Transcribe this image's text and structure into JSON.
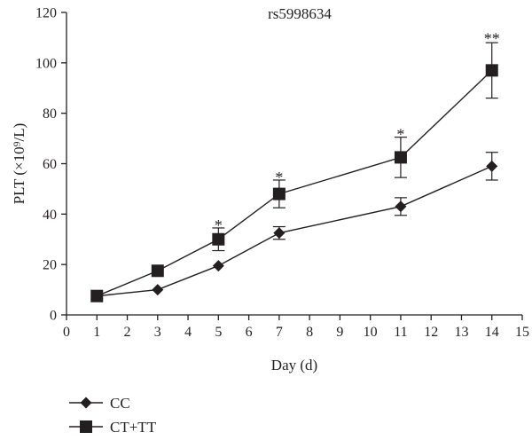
{
  "chart_data": {
    "type": "line",
    "title": "rs5998634",
    "xlabel": "Day (d)",
    "ylabel": "PLT (×10⁹/L)",
    "xlim": [
      0,
      15
    ],
    "ylim": [
      0,
      120
    ],
    "xticks": [
      0,
      1,
      2,
      3,
      4,
      5,
      6,
      7,
      8,
      9,
      10,
      11,
      12,
      13,
      14,
      15
    ],
    "yticks": [
      0,
      20,
      40,
      60,
      80,
      100,
      120
    ],
    "grid": false,
    "legend_position": "bottom-left",
    "series": [
      {
        "name": "CC",
        "marker": "diamond",
        "color": "#231f20",
        "x": [
          1,
          3,
          5,
          7,
          11,
          14
        ],
        "y": [
          7.5,
          10,
          19.5,
          32.5,
          43,
          59
        ],
        "err": [
          0,
          0,
          0,
          2.5,
          3.5,
          5.5
        ]
      },
      {
        "name": "CT+TT",
        "marker": "square",
        "color": "#231f20",
        "x": [
          1,
          3,
          5,
          7,
          11,
          14
        ],
        "y": [
          7.5,
          17.5,
          30,
          48,
          62.5,
          97
        ],
        "err": [
          0,
          0,
          4.5,
          5.5,
          8,
          11
        ]
      }
    ],
    "annotations": [
      {
        "x": 5,
        "y": 37,
        "text": "*"
      },
      {
        "x": 7,
        "y": 56,
        "text": "*"
      },
      {
        "x": 11,
        "y": 73,
        "text": "*"
      },
      {
        "x": 14,
        "y": 111,
        "text": "**"
      }
    ]
  }
}
